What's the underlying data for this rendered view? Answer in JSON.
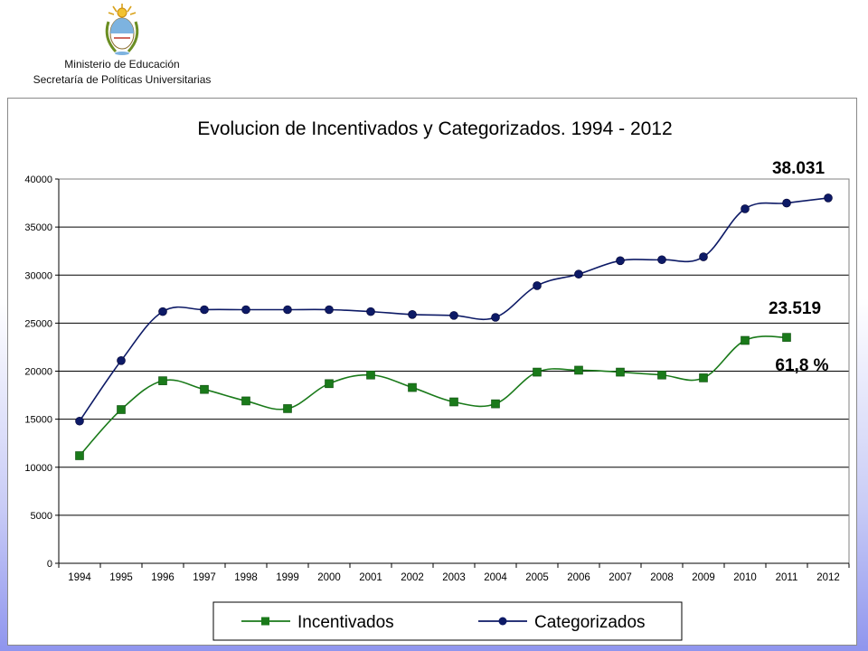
{
  "header": {
    "emblem_icon": "argentina-coat-of-arms-icon",
    "line1": "Ministerio de Educación",
    "line2": "Secretaría de Políticas Universitarias"
  },
  "chart_data": {
    "type": "line",
    "title": "Evolucion de Incentivados y Categorizados. 1994 - 2012",
    "xlabel": "",
    "ylabel": "",
    "ylim": [
      0,
      40000
    ],
    "yticks": [
      "0",
      "5000",
      "10000",
      "15000",
      "20000",
      "25000",
      "30000",
      "35000",
      "40000"
    ],
    "grid": true,
    "legend_position": "bottom",
    "categories": [
      "1994",
      "1995",
      "1996",
      "1997",
      "1998",
      "1999",
      "2000",
      "2001",
      "2002",
      "2003",
      "2004",
      "2005",
      "2006",
      "2007",
      "2008",
      "2009",
      "2010",
      "2011",
      "2012"
    ],
    "series": [
      {
        "name": "Incentivados",
        "color": "#1a7a1a",
        "marker": "square",
        "values": [
          11200,
          16000,
          19000,
          18100,
          16900,
          16100,
          18700,
          19600,
          18300,
          16800,
          16600,
          19900,
          20100,
          19900,
          19600,
          19300,
          23200,
          23519,
          null
        ]
      },
      {
        "name": "Categorizados",
        "color": "#0d1a66",
        "marker": "circle",
        "values": [
          14800,
          21100,
          26200,
          26400,
          26400,
          26400,
          26400,
          26200,
          25900,
          25800,
          25600,
          28900,
          30100,
          31500,
          31600,
          31900,
          36900,
          37500,
          38031
        ]
      }
    ],
    "annotations": [
      {
        "text": "38.031",
        "series": 1,
        "category": "2012"
      },
      {
        "text": "23.519",
        "series": 0,
        "category": "2011"
      },
      {
        "text": "61,8 %",
        "series": 0,
        "category": "2011"
      }
    ]
  }
}
